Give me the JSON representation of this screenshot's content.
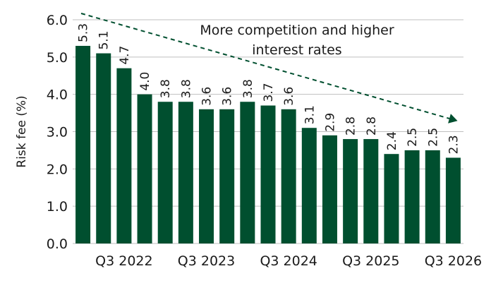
{
  "chart_data": {
    "type": "bar",
    "categories": [
      "",
      "",
      "Q3 2022",
      "",
      "",
      "",
      "Q3 2023",
      "",
      "",
      "",
      "Q3 2024",
      "",
      "",
      "",
      "Q3 2025",
      "",
      "",
      "",
      "Q3 2026"
    ],
    "values": [
      5.3,
      5.1,
      4.7,
      4.0,
      3.8,
      3.8,
      3.6,
      3.6,
      3.8,
      3.7,
      3.6,
      3.1,
      2.9,
      2.8,
      2.8,
      2.4,
      2.5,
      2.5,
      2.3
    ],
    "labels": [
      "5.3",
      "5.1",
      "4.7",
      "4.0",
      "3.8",
      "3.8",
      "3.6",
      "3.6",
      "3.8",
      "3.7",
      "3.6",
      "3.1",
      "2.9",
      "2.8",
      "2.8",
      "2.4",
      "2.5",
      "2.5",
      "2.3"
    ],
    "ylabel": "Risk fee (%)",
    "ylim": [
      0,
      6
    ],
    "yticks": [
      "0.0",
      "1.0",
      "2.0",
      "3.0",
      "4.0",
      "5.0",
      "6.0"
    ],
    "grid": true,
    "annotation": {
      "lines": [
        "More competition and higher",
        "interest rates"
      ],
      "arrow": "dashed, downward trend"
    },
    "colors": {
      "bar": "#004f2f",
      "arrow": "#004f2f",
      "grid": "#bfbfbf"
    }
  }
}
